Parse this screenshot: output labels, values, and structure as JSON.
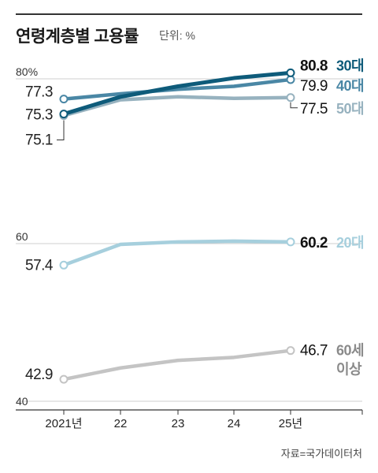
{
  "header": {
    "title": "연령계층별 고용률",
    "unit": "단위: %"
  },
  "source": "자료=국가데이터처",
  "colors": {
    "30대": "#0e5b7a",
    "40대": "#4a87a5",
    "50대": "#97b2bf",
    "20대": "#a6cfdd",
    "60세 이상": "#c4c4c4",
    "label_gray": "#8a8a8a"
  },
  "chart_data": {
    "type": "line",
    "title": "연령계층별 고용률",
    "x": [
      "2021년",
      "22",
      "23",
      "24",
      "25년"
    ],
    "series": [
      {
        "name": "30대",
        "values": [
          75.3,
          77.6,
          79.0,
          80.1,
          80.8
        ],
        "first_label": "75.3",
        "last_label": "80.8",
        "bold_last": true
      },
      {
        "name": "40대",
        "values": [
          77.3,
          78.0,
          78.6,
          79.0,
          79.9
        ],
        "first_label": "77.3",
        "last_label": "79.9"
      },
      {
        "name": "50대",
        "values": [
          75.1,
          77.2,
          77.6,
          77.4,
          77.5
        ],
        "first_label": "75.1",
        "last_label": "77.5"
      },
      {
        "name": "20대",
        "values": [
          57.4,
          59.9,
          60.2,
          60.3,
          60.2
        ],
        "first_label": "57.4",
        "last_label": "60.2",
        "bold_last": true
      },
      {
        "name": "60세 이상",
        "values": [
          42.9,
          44.4,
          45.4,
          45.8,
          46.7
        ],
        "first_label": "42.9",
        "last_label": "46.7"
      }
    ],
    "gridlines": [
      {
        "value": 80,
        "label": "80%"
      },
      {
        "value": 60,
        "label": "60"
      },
      {
        "value": 40,
        "label": "40"
      }
    ],
    "legend_labels": [
      {
        "lines": [
          "30대"
        ],
        "series": "30대"
      },
      {
        "lines": [
          "40대"
        ],
        "series": "40대"
      },
      {
        "lines": [
          "50대"
        ],
        "series": "50대"
      },
      {
        "lines": [
          "20대"
        ],
        "series": "20대"
      },
      {
        "lines": [
          "60세",
          "이상"
        ],
        "series": "60세 이상"
      }
    ]
  }
}
